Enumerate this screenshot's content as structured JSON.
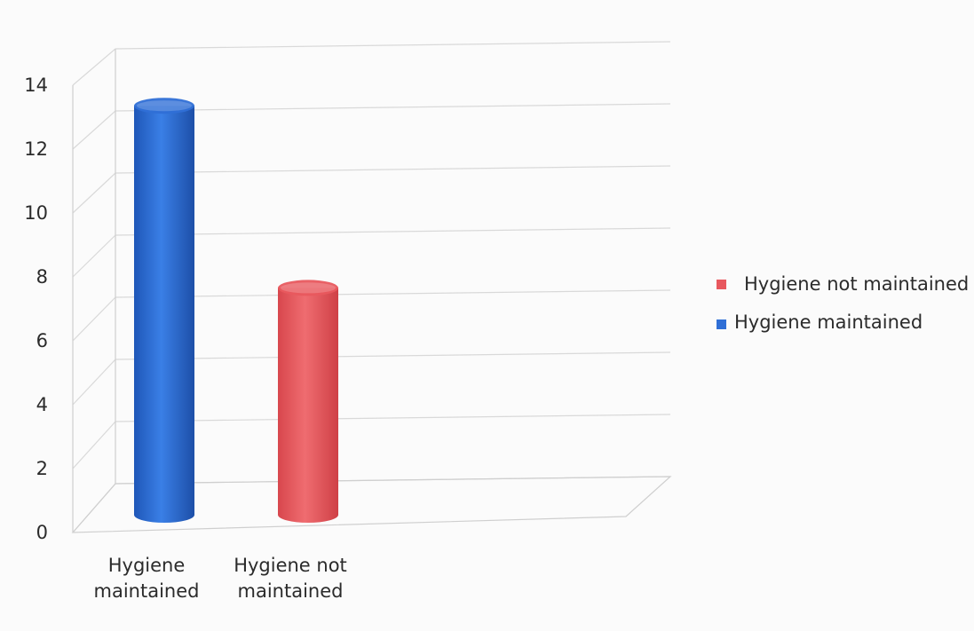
{
  "chart_data": {
    "type": "bar",
    "style": "3d-cylinder",
    "title": "",
    "xlabel": "",
    "ylabel": "",
    "categories": [
      "Hygiene maintained",
      "Hygiene not maintained"
    ],
    "category_lines": [
      [
        "Hygiene",
        "maintained"
      ],
      [
        "Hygiene not",
        "maintained"
      ]
    ],
    "series": [
      {
        "name": "Hygiene maintained",
        "color": "#2f6fd6",
        "values": [
          13.3,
          null
        ]
      },
      {
        "name": "Hygiene not maintained",
        "color": "#e8585e",
        "values": [
          null,
          7.6
        ]
      }
    ],
    "legend_order": [
      "Hygiene not maintained",
      "Hygiene maintained"
    ],
    "legend_position": "right",
    "ylim": [
      0,
      14
    ],
    "yticks": [
      0,
      2,
      4,
      6,
      8,
      10,
      12,
      14
    ],
    "grid": true
  }
}
